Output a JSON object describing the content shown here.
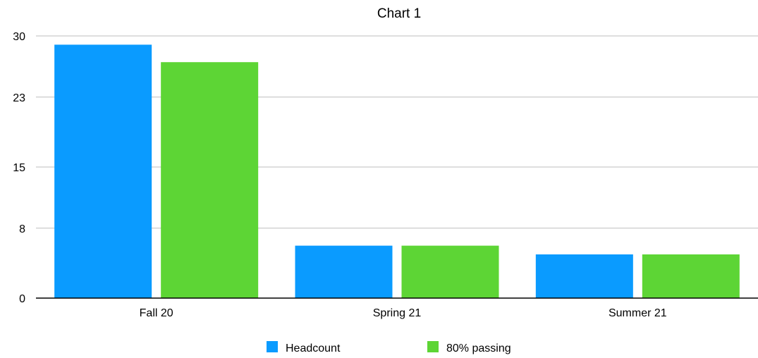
{
  "chart_data": {
    "type": "bar",
    "title": "Chart 1",
    "categories": [
      "Fall 20",
      "Spring 21",
      "Summer 21"
    ],
    "series": [
      {
        "name": "Headcount",
        "color": "#0a9bff",
        "values": [
          29,
          6,
          5
        ]
      },
      {
        "name": "80% passing",
        "color": "#5dd535",
        "values": [
          27,
          6,
          5
        ]
      }
    ],
    "yticks": [
      "0",
      "8",
      "15",
      "23",
      "30"
    ],
    "ylim": [
      0,
      30
    ],
    "xlabel": "",
    "ylabel": "",
    "grid": true,
    "legend_position": "bottom"
  }
}
